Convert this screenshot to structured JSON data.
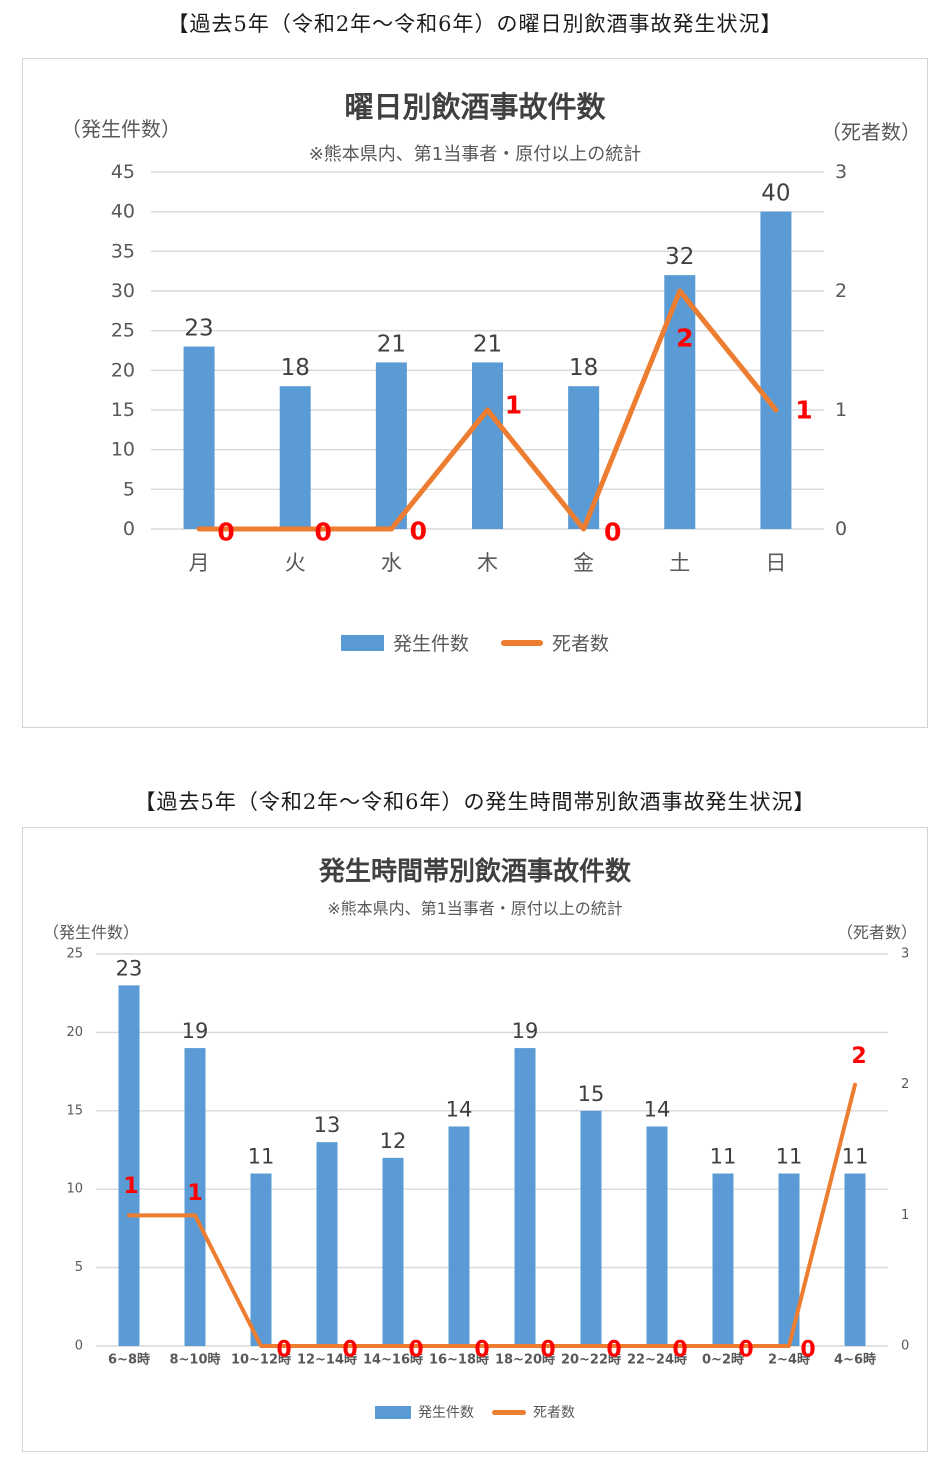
{
  "page": {
    "section1_heading": "【過去5年（令和2年～令和6年）の曜日別飲酒事故発生状況】",
    "section2_heading": "【過去5年（令和2年～令和6年）の発生時間帯別飲酒事故発生状況】"
  },
  "colors": {
    "bar": "#5B9BD5",
    "line": "#ED7D31",
    "red_label": "#FF0000",
    "gridline": "#D9D9D9",
    "tick_text": "#595959",
    "value_text": "#404040",
    "card_border": "#D4D4D4"
  },
  "chart_data": [
    {
      "type": "bar",
      "combo": "bar+line",
      "title": "曜日別飲酒事故件数",
      "subtitle": "※熊本県内、第1当事者・原付以上の統計",
      "left_axis_title": "（発生件数）",
      "right_axis_title": "（死者数）",
      "categories": [
        "月",
        "火",
        "水",
        "木",
        "金",
        "土",
        "日"
      ],
      "series": [
        {
          "name": "発生件数",
          "type": "bar",
          "axis": "left",
          "color": "#5B9BD5",
          "values": [
            23,
            18,
            21,
            21,
            18,
            32,
            40
          ]
        },
        {
          "name": "死者数",
          "type": "line",
          "axis": "right",
          "color": "#ED7D31",
          "label_color": "#FF0000",
          "values": [
            0,
            0,
            0,
            1,
            0,
            2,
            1
          ],
          "label_offsets": [
            [
              27,
              3
            ],
            [
              28,
              3
            ],
            [
              27,
              2
            ],
            [
              26,
              -5
            ],
            [
              29,
              3
            ],
            [
              5,
              47
            ],
            [
              28,
              0
            ]
          ]
        }
      ],
      "left_axis": {
        "min": 0,
        "max": 45,
        "step": 5
      },
      "right_axis": {
        "min": 0,
        "max": 3,
        "step": 1
      },
      "grid": true,
      "legend_position": "bottom"
    },
    {
      "type": "bar",
      "combo": "bar+line",
      "title": "発生時間帯別飲酒事故件数",
      "subtitle": "※熊本県内、第1当事者・原付以上の統計",
      "left_axis_title": "（発生件数）",
      "right_axis_title": "（死者数）",
      "categories": [
        "6~8時",
        "8~10時",
        "10~12時",
        "12~14時",
        "14~16時",
        "16~18時",
        "18~20時",
        "20~22時",
        "22~24時",
        "0~2時",
        "2~4時",
        "4~6時"
      ],
      "series": [
        {
          "name": "発生件数",
          "type": "bar",
          "axis": "left",
          "color": "#5B9BD5",
          "values": [
            23,
            19,
            11,
            13,
            12,
            14,
            19,
            15,
            14,
            11,
            11,
            11
          ]
        },
        {
          "name": "死者数",
          "type": "line",
          "axis": "right",
          "color": "#ED7D31",
          "label_color": "#FF0000",
          "values": [
            1,
            1,
            0,
            0,
            0,
            0,
            0,
            0,
            0,
            0,
            0,
            2
          ],
          "label_offsets": [
            [
              2,
              -29
            ],
            [
              0,
              -22
            ],
            [
              23,
              4
            ],
            [
              23,
              4
            ],
            [
              23,
              4
            ],
            [
              23,
              4
            ],
            [
              23,
              4
            ],
            [
              23,
              4
            ],
            [
              23,
              4
            ],
            [
              23,
              4
            ],
            [
              19,
              4
            ],
            [
              4,
              -28
            ]
          ]
        }
      ],
      "left_axis": {
        "min": 0,
        "max": 25,
        "step": 5
      },
      "right_axis": {
        "min": 0,
        "max": 3,
        "step": 1
      },
      "grid": true,
      "legend_position": "bottom"
    }
  ]
}
